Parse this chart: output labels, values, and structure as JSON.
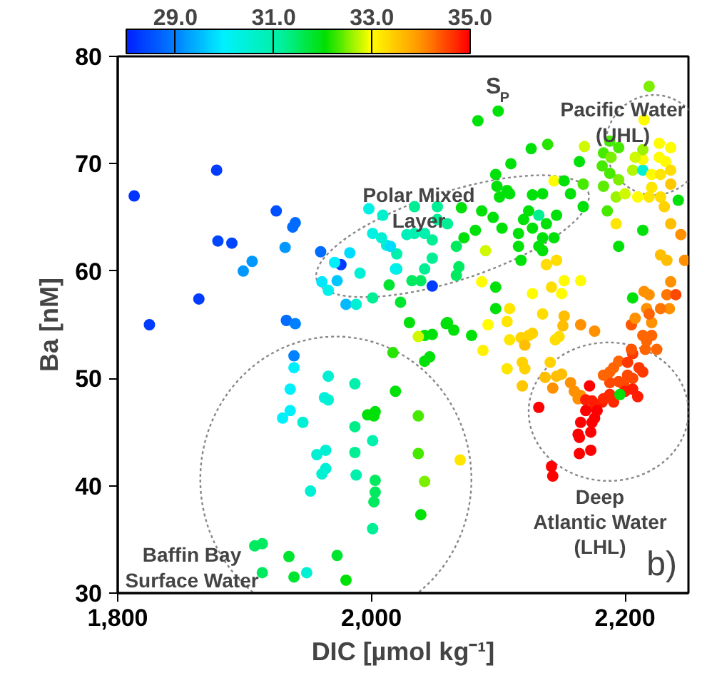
{
  "chart_data": {
    "type": "scatter",
    "xlabel": "DIC [µmol kg⁻¹]",
    "ylabel": "Ba [nM]",
    "clabel": "S$_{P}$",
    "xlim": [
      1800,
      2250
    ],
    "ylim": [
      30,
      80
    ],
    "xticks": [
      {
        "value": 1800,
        "label": "1,800"
      },
      {
        "value": 2000,
        "label": "2,000"
      },
      {
        "value": 2200,
        "label": "2,200"
      }
    ],
    "yticks": [
      30,
      40,
      50,
      60,
      70,
      80
    ],
    "clim": [
      28,
      35
    ],
    "cticks": [
      {
        "value": 29,
        "label": "29.0"
      },
      {
        "value": 31,
        "label": "31.0"
      },
      {
        "value": 33,
        "label": "33.0"
      },
      {
        "value": 35,
        "label": "35.0"
      }
    ],
    "grid": false,
    "marker": "circle",
    "annotations": [
      "Polar Mixed\nLayer",
      "Pacific Water\n(UHL)",
      "Deep\nAtlantic Water\n(LHL)",
      "Baffin Bay\nSurface Water",
      "b)"
    ],
    "x": [
      1813,
      1878,
      1825,
      1864,
      1879,
      1890,
      1925,
      1938,
      1940,
      1906,
      1899,
      1932,
      1933,
      1940,
      1960,
      1976,
      1971,
      1983,
      1973,
      1961,
      1966,
      1980,
      1988,
      1991,
      1998,
      2009,
      2001,
      2008,
      2012,
      2020,
      2020,
      2014,
      2001,
      2023,
      2030,
      2017,
      1939,
      1939,
      1966,
      1987,
      1936,
      1963,
      1966,
      2019,
      1936,
      1930,
      1946,
      1997,
      2003,
      2002,
      1987,
      2001,
      1957,
      1964,
      1987,
      1964,
      1961,
      1988,
      2003,
      1952,
      2003,
      2002,
      2001,
      1908,
      1914,
      1935,
      1973,
      1914,
      1939,
      1949,
      1980,
      2037,
      2037,
      2042,
      2039,
      2070,
      2059,
      2065,
      2048,
      2042,
      2037,
      2079,
      2042,
      2046,
      2088,
      2092,
      2109,
      2124,
      2118,
      2127,
      2145,
      2148,
      2151,
      2152,
      2121,
      2107,
      2109,
      2119,
      2121,
      2107,
      2119,
      2141,
      2137,
      2146,
      2150,
      2143,
      2157,
      2160,
      2163,
      2165,
      2132,
      2172,
      2169,
      2174,
      2176,
      2182,
      2169,
      2178,
      2165,
      2174,
      2176,
      2163,
      2173,
      2164,
      2164,
      2173,
      2142,
      2143,
      2183,
      2188,
      2191,
      2188,
      2195,
      2199,
      2202,
      2206,
      2210,
      2206,
      2200,
      2191,
      2195,
      2188,
      2183,
      2202,
      2206,
      2211,
      2214,
      2205,
      2205,
      2216,
      2225,
      2221,
      2214,
      2217,
      2208,
      2217,
      2221,
      2235,
      2176,
      2165,
      2196,
      2100,
      2084,
      2139,
      2126,
      2110,
      2098,
      2164,
      2168,
      2219,
      2215,
      2188,
      2195,
      2183,
      2189,
      2182,
      2188,
      2195,
      2183,
      2193,
      2186,
      2206,
      2214,
      2214,
      2214,
      2208,
      2227,
      2236,
      2227,
      2232,
      2221,
      2228,
      2236,
      2221,
      2228,
      2236,
      2219,
      2231,
      2242,
      2210,
      2200,
      2214,
      2193,
      2236,
      2244,
      2247,
      2233,
      2228,
      2195,
      2206,
      2236,
      2233,
      2240,
      2228,
      2219,
      2215,
      2219,
      2127,
      2135,
      2124,
      2132,
      2138,
      2127,
      2135,
      2144,
      2132,
      2120,
      2116,
      2109,
      2101,
      2107,
      2096,
      2103,
      2118,
      2135,
      2099,
      2146,
      2144,
      2152,
      2157,
      2167,
      2087,
      2082,
      2071,
      2073,
      2067,
      2069,
      2067,
      2060,
      2052,
      2048,
      2042,
      2034,
      2028,
      2034,
      2052,
      2048,
      2042,
      2039,
      2032,
      2048,
      2019,
      2015,
      2087,
      2098,
      2090,
      2116,
      2098,
      2060,
      2127,
      2150,
      2152,
      2165,
      2135,
      2138,
      2142,
      2167,
      2146
    ],
    "values": [
      67.0,
      69.4,
      55.0,
      57.4,
      62.8,
      62.6,
      65.6,
      64.1,
      64.5,
      60.9,
      60.0,
      62.2,
      55.4,
      55.1,
      61.8,
      60.6,
      60.8,
      61.7,
      59.1,
      59.0,
      58.2,
      56.9,
      56.9,
      59.8,
      65.8,
      65.2,
      63.5,
      63.1,
      62.4,
      61.6,
      60.2,
      58.7,
      57.5,
      57.1,
      55.2,
      52.4,
      52.1,
      51.0,
      50.2,
      49.5,
      49.0,
      48.2,
      48.0,
      48.8,
      47.0,
      46.3,
      45.9,
      46.6,
      46.9,
      46.5,
      45.5,
      44.2,
      42.9,
      43.3,
      43.1,
      41.6,
      41.1,
      41.0,
      40.5,
      39.5,
      39.4,
      38.5,
      36.0,
      34.4,
      34.6,
      33.4,
      33.5,
      31.9,
      31.5,
      31.9,
      31.2,
      46.5,
      43.0,
      40.4,
      37.3,
      42.4,
      55.1,
      54.5,
      54.1,
      54.0,
      53.9,
      54.0,
      51.6,
      52.0,
      52.6,
      55.0,
      53.6,
      54.0,
      53.8,
      54.2,
      53.6,
      53.9,
      54.9,
      55.8,
      53.1,
      55.3,
      56.5,
      51.5,
      50.9,
      50.9,
      49.3,
      51.5,
      50.1,
      50.2,
      50.4,
      49.1,
      49.6,
      48.8,
      48.1,
      48.4,
      47.3,
      49.3,
      48.0,
      47.9,
      47.3,
      47.8,
      47.0,
      47.0,
      45.9,
      45.9,
      46.3,
      44.8,
      45.0,
      44.5,
      43.0,
      43.3,
      41.8,
      40.9,
      48.1,
      48.5,
      47.8,
      49.6,
      49.7,
      49.4,
      50.3,
      50.0,
      48.3,
      49.0,
      48.8,
      51.0,
      51.6,
      50.6,
      50.3,
      51.5,
      52.3,
      51.0,
      50.6,
      55.0,
      52.7,
      52.7,
      52.7,
      54.0,
      54.0,
      53.5,
      55.6,
      56.5,
      55.2,
      56.5,
      54.4,
      55.0,
      48.5,
      74.9,
      74.0,
      71.8,
      71.4,
      70.0,
      69.0,
      70.2,
      71.6,
      77.2,
      74.1,
      72.1,
      71.5,
      71.0,
      70.6,
      69.8,
      69.1,
      68.5,
      67.9,
      66.9,
      65.6,
      69.4,
      69.4,
      70.4,
      71.3,
      70.6,
      71.9,
      71.5,
      70.6,
      70.2,
      69.0,
      69.0,
      69.4,
      67.8,
      66.9,
      68.1,
      66.9,
      66.0,
      66.6,
      66.9,
      67.2,
      63.8,
      64.4,
      64.4,
      63.4,
      61.0,
      61.0,
      61.5,
      62.3,
      57.5,
      59.0,
      57.8,
      57.8,
      56.5,
      57.8,
      58.1,
      56.0,
      67.1,
      67.2,
      65.6,
      65.2,
      64.4,
      64.0,
      63.1,
      63.1,
      62.3,
      64.8,
      63.5,
      67.2,
      66.9,
      67.5,
      65.0,
      64.0,
      61.0,
      61.9,
      67.9,
      65.2,
      68.4,
      68.4,
      67.2,
      66.0,
      65.6,
      63.8,
      65.9,
      63.1,
      62.3,
      60.4,
      59.6,
      64.4,
      64.8,
      62.9,
      63.5,
      63.5,
      63.4,
      66.0,
      66.0,
      61.2,
      60.2,
      59.1,
      59.1,
      58.6,
      60.2,
      62.3,
      59.0,
      58.5,
      61.9,
      62.3,
      56.5,
      55.2,
      57.9,
      57.9,
      59.1,
      59.1,
      56.0,
      60.6,
      58.5,
      68.1,
      61.0
    ],
    "cvalues": [
      28.2,
      28.3,
      28.3,
      28.3,
      28.4,
      28.4,
      28.5,
      28.8,
      28.8,
      29.2,
      29.2,
      29.2,
      28.8,
      29.0,
      28.8,
      28.3,
      30.0,
      29.8,
      29.6,
      29.9,
      30.2,
      29.5,
      30.5,
      30.5,
      30.3,
      30.6,
      30.3,
      30.5,
      30.5,
      31.0,
      31.0,
      31.8,
      31.2,
      31.8,
      32.0,
      32.2,
      29.0,
      30.0,
      30.5,
      31.0,
      30.0,
      30.4,
      30.5,
      32.0,
      30.0,
      30.0,
      30.5,
      32.0,
      32.0,
      32.0,
      31.3,
      31.0,
      30.5,
      30.5,
      31.2,
      30.5,
      30.5,
      31.0,
      31.5,
      30.5,
      31.5,
      31.5,
      31.2,
      31.5,
      31.5,
      31.8,
      31.8,
      31.5,
      31.8,
      30.5,
      32.0,
      32.3,
      32.3,
      32.5,
      32.0,
      33.2,
      32.0,
      32.0,
      32.0,
      32.0,
      32.8,
      32.0,
      32.0,
      32.0,
      33.1,
      33.0,
      33.2,
      33.4,
      33.4,
      33.4,
      33.3,
      33.3,
      33.6,
      33.6,
      33.6,
      33.2,
      33.2,
      33.4,
      33.4,
      33.2,
      33.5,
      33.4,
      33.6,
      33.6,
      33.6,
      34.0,
      34.0,
      34.0,
      34.0,
      34.0,
      35.0,
      35.0,
      34.8,
      34.8,
      34.8,
      34.8,
      35.0,
      35.0,
      35.0,
      35.0,
      35.0,
      35.0,
      35.0,
      35.0,
      35.0,
      35.0,
      35.0,
      35.0,
      34.7,
      34.7,
      34.7,
      34.5,
      34.5,
      34.5,
      34.5,
      34.5,
      34.8,
      34.8,
      34.8,
      34.3,
      34.3,
      34.3,
      34.3,
      34.6,
      34.6,
      34.6,
      34.6,
      34.4,
      34.4,
      34.3,
      34.3,
      34.3,
      34.3,
      34.3,
      34.0,
      34.0,
      34.0,
      34.0,
      34.0,
      34.0,
      32.0,
      32.0,
      32.0,
      32.2,
      32.0,
      32.0,
      32.0,
      32.0,
      32.8,
      32.5,
      33.0,
      32.3,
      32.3,
      32.3,
      32.5,
      32.3,
      32.3,
      32.5,
      32.4,
      32.6,
      32.3,
      32.7,
      30.5,
      33.0,
      32.6,
      32.8,
      33.0,
      33.0,
      33.0,
      33.0,
      33.0,
      33.2,
      33.3,
      33.2,
      33.3,
      33.5,
      33.2,
      33.4,
      32.0,
      33.0,
      32.8,
      32.0,
      33.2,
      33.6,
      34.0,
      34.0,
      33.6,
      33.6,
      32.0,
      32.0,
      34.0,
      34.2,
      34.5,
      34.2,
      34.0,
      34.0,
      34.3,
      32.0,
      32.0,
      32.0,
      31.2,
      32.0,
      32.0,
      32.0,
      32.0,
      32.0,
      32.0,
      32.0,
      32.0,
      32.0,
      32.0,
      32.0,
      32.0,
      32.0,
      32.0,
      32.0,
      32.0,
      33.0,
      32.0,
      32.0,
      32.0,
      32.0,
      32.0,
      32.0,
      32.0,
      31.5,
      31.5,
      31.5,
      31.2,
      31.2,
      31.2,
      31.0,
      31.0,
      30.8,
      31.2,
      31.2,
      31.2,
      31.2,
      31.5,
      31.5,
      28.3,
      30.2,
      29.8,
      33.0,
      32.0,
      32.8,
      32.0,
      32.0,
      32.0,
      33.0,
      33.0,
      33.0,
      33.0,
      33.3,
      33.3,
      33.3,
      32.3,
      33.3
    ]
  }
}
